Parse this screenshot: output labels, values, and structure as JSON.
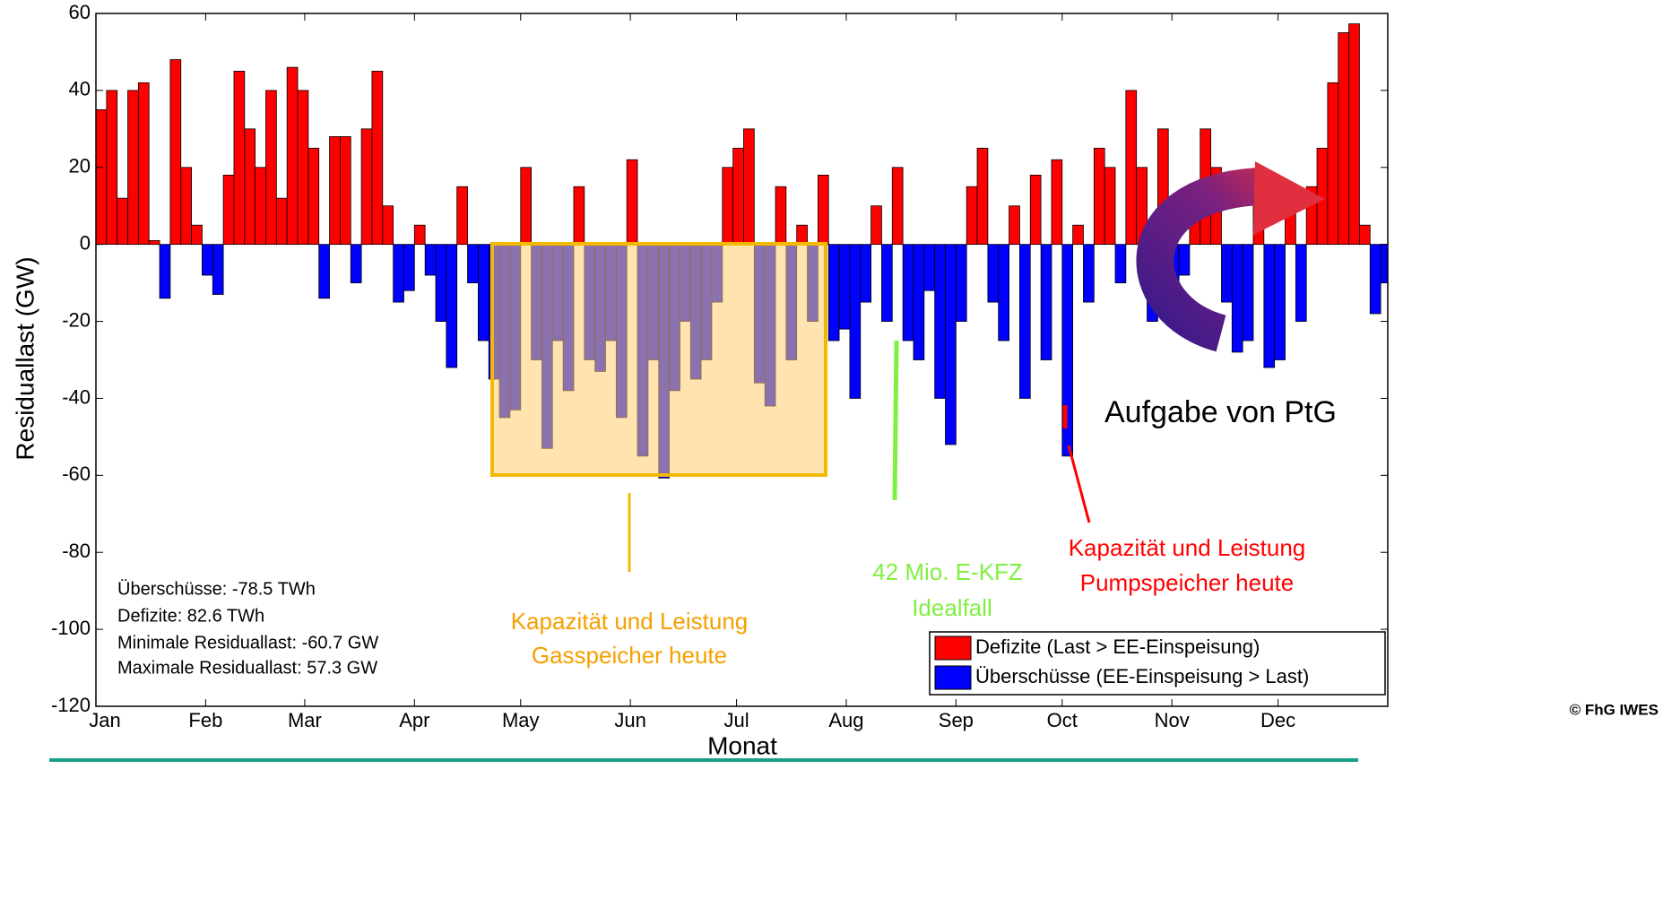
{
  "chart_data": {
    "type": "bar",
    "y_label": "Residuallast (GW)",
    "x_label": "Monat",
    "xlim": [
      0,
      365
    ],
    "xticks": [
      {
        "value": 0,
        "label": "Jan"
      },
      {
        "value": 31,
        "label": "Feb"
      },
      {
        "value": 59,
        "label": "Mar"
      },
      {
        "value": 90,
        "label": "Apr"
      },
      {
        "value": 120,
        "label": "May"
      },
      {
        "value": 151,
        "label": "Jun"
      },
      {
        "value": 181,
        "label": "Jul"
      },
      {
        "value": 212,
        "label": "Aug"
      },
      {
        "value": 243,
        "label": "Sep"
      },
      {
        "value": 273,
        "label": "Oct"
      },
      {
        "value": 304,
        "label": "Nov"
      },
      {
        "value": 334,
        "label": "Dec"
      }
    ],
    "ylim": [
      -120,
      60
    ],
    "yticks": [
      -120,
      -100,
      -80,
      -60,
      -40,
      -20,
      0,
      20,
      40,
      60
    ],
    "x": [
      0,
      3,
      6,
      9,
      12,
      15,
      18,
      21,
      24,
      27,
      30,
      33,
      36,
      39,
      42,
      45,
      48,
      51,
      54,
      57,
      60,
      63,
      66,
      69,
      72,
      75,
      78,
      81,
      84,
      87,
      90,
      93,
      96,
      99,
      102,
      105,
      108,
      111,
      114,
      117,
      120,
      123,
      126,
      129,
      132,
      135,
      138,
      141,
      144,
      147,
      150,
      153,
      156,
      159,
      162,
      165,
      168,
      171,
      174,
      177,
      180,
      183,
      186,
      189,
      192,
      195,
      198,
      201,
      204,
      207,
      210,
      213,
      216,
      219,
      222,
      225,
      228,
      231,
      234,
      237,
      240,
      243,
      246,
      249,
      252,
      255,
      258,
      261,
      264,
      267,
      270,
      273,
      276,
      279,
      282,
      285,
      288,
      291,
      294,
      297,
      300,
      303,
      306,
      309,
      312,
      315,
      318,
      321,
      324,
      327,
      330,
      333,
      336,
      339,
      342,
      345,
      348,
      351,
      354,
      357,
      360,
      363
    ],
    "values": [
      35,
      40,
      12,
      40,
      42,
      1,
      -14,
      48,
      20,
      5,
      -8,
      -13,
      18,
      45,
      30,
      20,
      40,
      12,
      46,
      40,
      25,
      -14,
      28,
      28,
      -10,
      30,
      45,
      10,
      -15,
      -12,
      5,
      -8,
      -20,
      -32,
      15,
      -10,
      -25,
      -35,
      -45,
      -43,
      20,
      -30,
      -53,
      -25,
      -38,
      15,
      -30,
      -33,
      -25,
      -45,
      22,
      -55,
      -30,
      -60.7,
      -38,
      -20,
      -35,
      -30,
      -15,
      20,
      25,
      30,
      -36,
      -42,
      15,
      -30,
      5,
      -20,
      18,
      -25,
      -22,
      -40,
      -15,
      10,
      -20,
      20,
      -25,
      -30,
      -12,
      -40,
      -52,
      -20,
      15,
      25,
      -15,
      -25,
      10,
      -40,
      18,
      -30,
      22,
      -55,
      5,
      -15,
      25,
      20,
      -10,
      40,
      20,
      -20,
      30,
      -20,
      -8,
      15,
      30,
      20,
      -15,
      -28,
      -25,
      15,
      -32,
      -30,
      10,
      -20,
      15,
      25,
      42,
      55,
      57.3,
      5,
      -18,
      -10
    ],
    "legend": [
      {
        "label": "Defizite (Last > EE-Einspeisung)",
        "color": "#ff0000"
      },
      {
        "label": "Überschüsse (EE-Einspeisung > Last)",
        "color": "#0000ff"
      }
    ],
    "stats": [
      "Überschüsse: -78.5 TWh",
      "Defizite: 82.6 TWh",
      "Minimale Residuallast: -60.7 GW",
      "Maximale Residuallast: 57.3 GW"
    ],
    "annotations": {
      "gas": [
        "Kapazität und Leistung",
        "Gasspeicher heute"
      ],
      "ev": [
        "42 Mio. E-KFZ",
        "Idealfall"
      ],
      "pump": [
        "Kapazität und Leistung",
        "Pumpspeicher heute"
      ],
      "ptg": "Aufgabe von PtG",
      "copyright": "© FhG IWES"
    }
  }
}
